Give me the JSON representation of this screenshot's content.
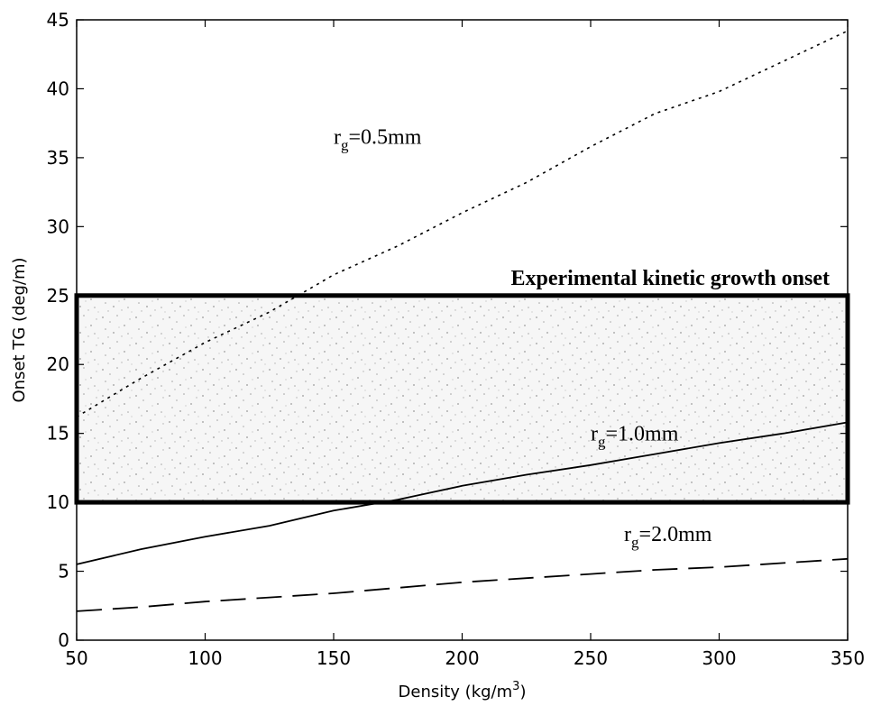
{
  "chart_data": {
    "type": "line",
    "xlabel_main": "Density (kg/m",
    "xlabel_sup": "3",
    "xlabel_end": ")",
    "ylabel": "Onset TG (deg/m)",
    "xlim": [
      50,
      350
    ],
    "ylim": [
      0,
      45
    ],
    "xticks": [
      50,
      100,
      150,
      200,
      250,
      300,
      350
    ],
    "yticks": [
      0,
      5,
      10,
      15,
      20,
      25,
      30,
      35,
      40,
      45
    ],
    "grid": false,
    "band": {
      "label": "Experimental kinetic growth onset",
      "x_range": [
        50,
        350
      ],
      "y_range": [
        10,
        25
      ]
    },
    "series": [
      {
        "label_main": "r",
        "label_sub": "g",
        "label_value": "=0.5mm",
        "style": "dotted",
        "label_at": [
          150,
          36
        ],
        "x": [
          50,
          75,
          100,
          125,
          150,
          175,
          200,
          225,
          250,
          275,
          300,
          325,
          350
        ],
        "y": [
          16.2,
          19.0,
          21.6,
          23.8,
          26.5,
          28.6,
          31.0,
          33.2,
          35.8,
          38.2,
          39.8,
          42.0,
          44.2
        ]
      },
      {
        "label_main": "r",
        "label_sub": "g",
        "label_value": "=1.0mm",
        "style": "solid",
        "label_at": [
          250,
          14.5
        ],
        "x": [
          50,
          75,
          100,
          125,
          150,
          175,
          200,
          225,
          250,
          275,
          300,
          325,
          350
        ],
        "y": [
          5.5,
          6.6,
          7.5,
          8.3,
          9.4,
          10.2,
          11.2,
          12.0,
          12.7,
          13.5,
          14.3,
          15.0,
          15.8
        ]
      },
      {
        "label_main": "r",
        "label_sub": "g",
        "label_value": "=2.0mm",
        "style": "dashed",
        "label_at": [
          263,
          7.2
        ],
        "x": [
          50,
          75,
          100,
          125,
          150,
          175,
          200,
          225,
          250,
          275,
          300,
          325,
          350
        ],
        "y": [
          2.1,
          2.4,
          2.8,
          3.1,
          3.4,
          3.8,
          4.2,
          4.5,
          4.8,
          5.1,
          5.3,
          5.6,
          5.9
        ]
      }
    ]
  }
}
